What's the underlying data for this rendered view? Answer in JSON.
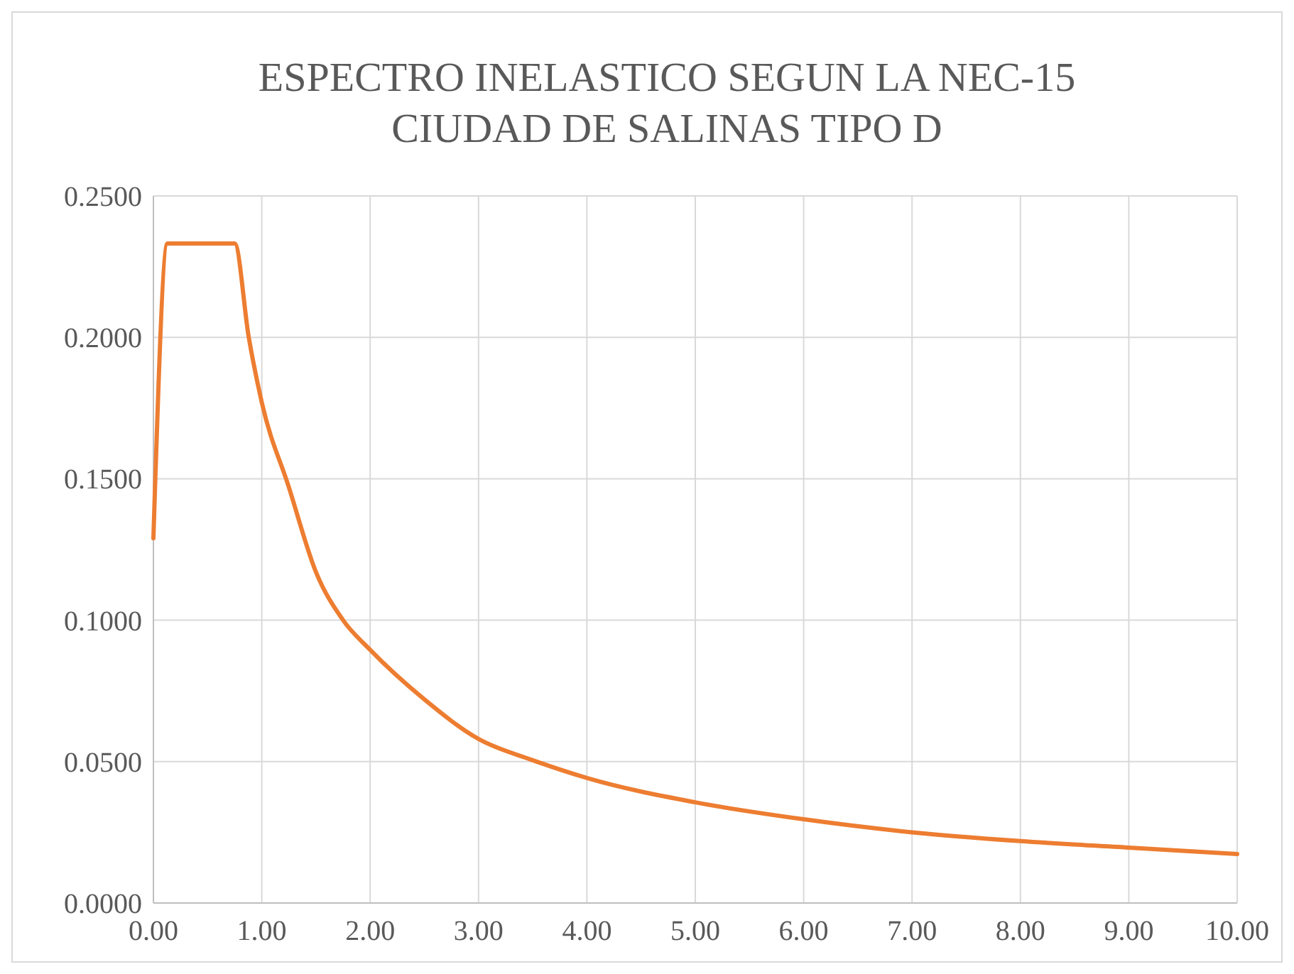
{
  "chart_data": {
    "type": "line",
    "title": "ESPECTRO INELASTICO SEGUN LA NEC-15\nCIUDAD DE SALINAS TIPO D",
    "x": [
      0,
      0.13,
      0.75,
      0.88,
      1.0,
      1.25,
      1.5,
      1.75,
      2.0,
      2.5,
      3.0,
      3.5,
      4.0,
      5.0,
      6.0,
      7.0,
      8.0,
      9.0,
      10.0
    ],
    "series": [
      {
        "color": "#ed7d31",
        "values": [
          0.129,
          0.2332,
          0.2332,
          0.2,
          0.177,
          0.147,
          0.117,
          0.1,
          0.0895,
          0.072,
          0.058,
          0.0505,
          0.0442,
          0.0356,
          0.0296,
          0.025,
          0.0219,
          0.0196,
          0.0173
        ]
      }
    ],
    "xlim": [
      0,
      10
    ],
    "xticks": [
      {
        "value": 0,
        "label": "0.00"
      },
      {
        "value": 1,
        "label": "1.00"
      },
      {
        "value": 2,
        "label": "2.00"
      },
      {
        "value": 3,
        "label": "3.00"
      },
      {
        "value": 4,
        "label": "4.00"
      },
      {
        "value": 5,
        "label": "5.00"
      },
      {
        "value": 6,
        "label": "6.00"
      },
      {
        "value": 7,
        "label": "7.00"
      },
      {
        "value": 8,
        "label": "8.00"
      },
      {
        "value": 9,
        "label": "9.00"
      },
      {
        "value": 10,
        "label": "10.00"
      }
    ],
    "ylim": [
      0,
      0.25
    ],
    "yticks": [
      {
        "value": 0,
        "label": "0.0000"
      },
      {
        "value": 0.05,
        "label": "0.0500"
      },
      {
        "value": 0.1,
        "label": "0.1000"
      },
      {
        "value": 0.15,
        "label": "0.1500"
      },
      {
        "value": 0.2,
        "label": "0.2000"
      },
      {
        "value": 0.25,
        "label": "0.2500"
      }
    ],
    "grid": true,
    "marker": "none",
    "line_style": "solid"
  }
}
